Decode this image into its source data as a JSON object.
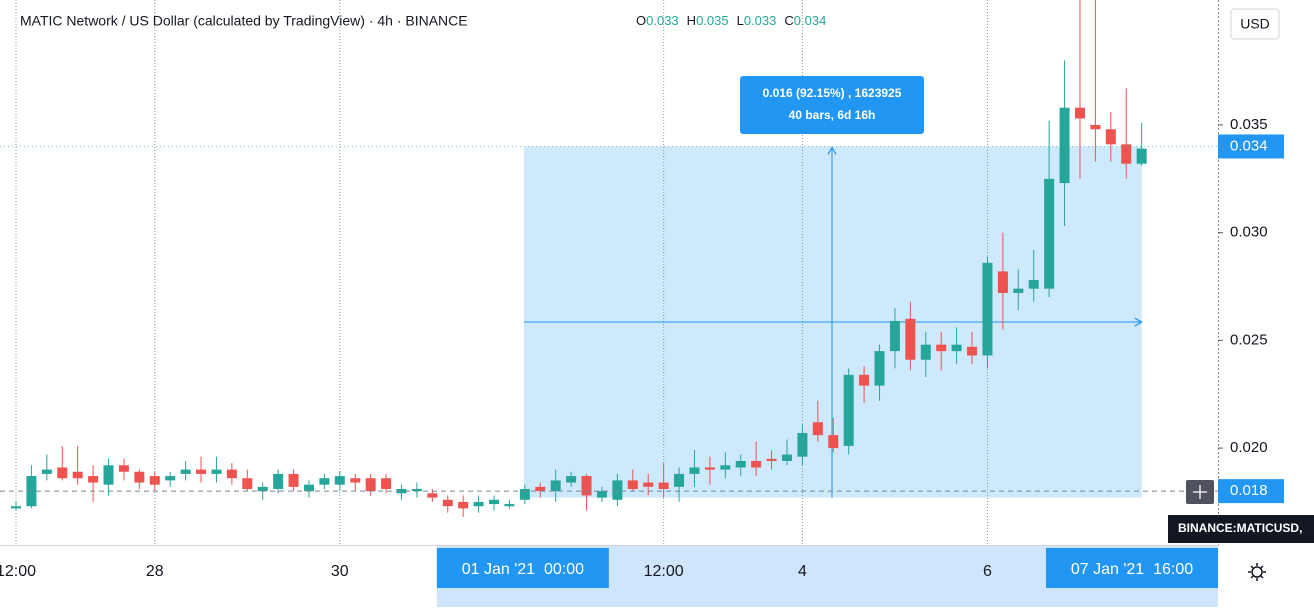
{
  "chart_data": {
    "type": "candlestick",
    "title": "MATIC Network / US Dollar (calculated by TradingView) · 4h · BINANCE",
    "ohlc_header": [
      {
        "label": "O",
        "value": 0.033
      },
      {
        "label": "H",
        "value": 0.035
      },
      {
        "label": "L",
        "value": 0.033
      },
      {
        "label": "C",
        "value": 0.034
      }
    ],
    "currency": "USD",
    "symbol_tooltip": "BINANCE:MATICUSD,",
    "categories": [
      "12:00",
      null,
      null,
      null,
      null,
      null,
      null,
      null,
      null,
      "28",
      null,
      null,
      null,
      null,
      null,
      null,
      null,
      null,
      null,
      null,
      null,
      "30",
      null,
      null,
      null,
      null,
      null,
      null,
      null,
      null,
      null,
      null,
      null,
      "01 Jan '21  00:00",
      null,
      null,
      null,
      null,
      null,
      null,
      null,
      null,
      "12:00",
      null,
      null,
      null,
      null,
      null,
      null,
      null,
      null,
      "4",
      null,
      null,
      null,
      null,
      null,
      null,
      null,
      null,
      null,
      null,
      null,
      "6",
      null,
      null,
      null,
      null,
      null,
      null,
      null,
      null,
      null,
      "07 Jan '21  16:00"
    ],
    "highlight": [
      33,
      73
    ],
    "open": [
      0.0172,
      0.0173,
      0.0188,
      0.0191,
      0.0189,
      0.0187,
      0.0183,
      0.0192,
      0.0189,
      0.0187,
      0.0185,
      0.0188,
      0.019,
      0.0188,
      0.019,
      0.0186,
      0.018,
      0.0181,
      0.0188,
      0.018,
      0.0183,
      0.0183,
      0.0186,
      0.0186,
      0.0186,
      0.0179,
      0.018,
      0.0179,
      0.0176,
      0.0175,
      0.0173,
      0.0174,
      0.0173,
      0.0176,
      0.0182,
      0.018,
      0.0184,
      0.0187,
      0.0177,
      0.0176,
      0.0185,
      0.0184,
      0.0184,
      0.0182,
      0.0188,
      0.0191,
      0.019,
      0.0191,
      0.0194,
      0.0195,
      0.0194,
      0.0196,
      0.0212,
      0.0206,
      0.0201,
      0.0234,
      0.0229,
      0.0245,
      0.026,
      0.0241,
      0.0248,
      0.0245,
      0.0247,
      0.0243,
      0.0282,
      0.0272,
      0.0274,
      0.0274,
      0.0323,
      0.0358,
      0.035,
      0.0348,
      0.0341,
      0.0332
    ],
    "high": [
      0.0175,
      0.0192,
      0.0197,
      0.0201,
      0.0201,
      0.0192,
      0.0195,
      0.0195,
      0.019,
      0.0189,
      0.0189,
      0.0194,
      0.0196,
      0.0196,
      0.0193,
      0.019,
      0.0184,
      0.019,
      0.019,
      0.0185,
      0.0188,
      0.0189,
      0.0188,
      0.0188,
      0.0188,
      0.0183,
      0.0184,
      0.0181,
      0.0178,
      0.0178,
      0.0178,
      0.0178,
      0.0176,
      0.0183,
      0.0184,
      0.019,
      0.0189,
      0.0188,
      0.0182,
      0.0188,
      0.019,
      0.0188,
      0.0193,
      0.0191,
      0.0199,
      0.0196,
      0.0198,
      0.0197,
      0.0203,
      0.0199,
      0.0204,
      0.0211,
      0.0222,
      0.0214,
      0.0237,
      0.0238,
      0.0248,
      0.0265,
      0.0268,
      0.0254,
      0.0254,
      0.0256,
      0.0254,
      0.0289,
      0.03,
      0.0283,
      0.0292,
      0.0352,
      0.038,
      0.0408,
      0.0408,
      0.0356,
      0.0367,
      0.0351
    ],
    "low": [
      0.0171,
      0.0172,
      0.0185,
      0.0185,
      0.0183,
      0.0175,
      0.0178,
      0.0185,
      0.0181,
      0.018,
      0.0182,
      0.0185,
      0.0184,
      0.0184,
      0.0183,
      0.018,
      0.0176,
      0.0179,
      0.018,
      0.0177,
      0.0181,
      0.018,
      0.018,
      0.0178,
      0.0179,
      0.0176,
      0.0177,
      0.0175,
      0.017,
      0.0168,
      0.017,
      0.0171,
      0.0172,
      0.0174,
      0.0177,
      0.0175,
      0.0182,
      0.0171,
      0.0175,
      0.0173,
      0.018,
      0.0178,
      0.0177,
      0.0175,
      0.0182,
      0.0183,
      0.0186,
      0.0187,
      0.0187,
      0.019,
      0.0192,
      0.0192,
      0.0203,
      0.0198,
      0.0197,
      0.0221,
      0.0222,
      0.0237,
      0.0236,
      0.0233,
      0.0236,
      0.0239,
      0.0239,
      0.0237,
      0.0255,
      0.0264,
      0.0268,
      0.027,
      0.0303,
      0.0325,
      0.0333,
      0.0333,
      0.0325,
      0.0331
    ],
    "close": [
      0.0173,
      0.0187,
      0.019,
      0.0186,
      0.0186,
      0.0184,
      0.0192,
      0.0189,
      0.0184,
      0.0183,
      0.0187,
      0.019,
      0.0188,
      0.019,
      0.0186,
      0.0181,
      0.0182,
      0.0188,
      0.0182,
      0.0183,
      0.0186,
      0.0187,
      0.0184,
      0.018,
      0.0181,
      0.0181,
      0.0181,
      0.0177,
      0.0173,
      0.0172,
      0.0175,
      0.0176,
      0.0174,
      0.0181,
      0.018,
      0.0185,
      0.0187,
      0.0178,
      0.018,
      0.0185,
      0.0181,
      0.0182,
      0.0181,
      0.0188,
      0.0191,
      0.019,
      0.0192,
      0.0194,
      0.0191,
      0.0194,
      0.0197,
      0.0207,
      0.0206,
      0.02,
      0.0234,
      0.0229,
      0.0245,
      0.0259,
      0.0241,
      0.0248,
      0.0245,
      0.0248,
      0.0243,
      0.0286,
      0.0272,
      0.0274,
      0.0278,
      0.0325,
      0.0358,
      0.0353,
      0.0348,
      0.0341,
      0.0332,
      0.0339
    ],
    "up_color": "#26a69a",
    "down_color": "#ef5350",
    "ylim": [
      0.0155,
      0.0408
    ],
    "yticks": [
      {
        "value": 0.02,
        "label": "0.020"
      },
      0.025,
      {
        "value": 0.03,
        "label": "0.030"
      },
      0.035
    ],
    "grid": true,
    "last_price": 0.034,
    "crosshair_price": 0.018,
    "measure": {
      "low": 0.0177,
      "high": 0.034,
      "lines": [
        "0.016 (92.15%) , 1623925",
        "40 bars, 6d 16h"
      ]
    }
  }
}
